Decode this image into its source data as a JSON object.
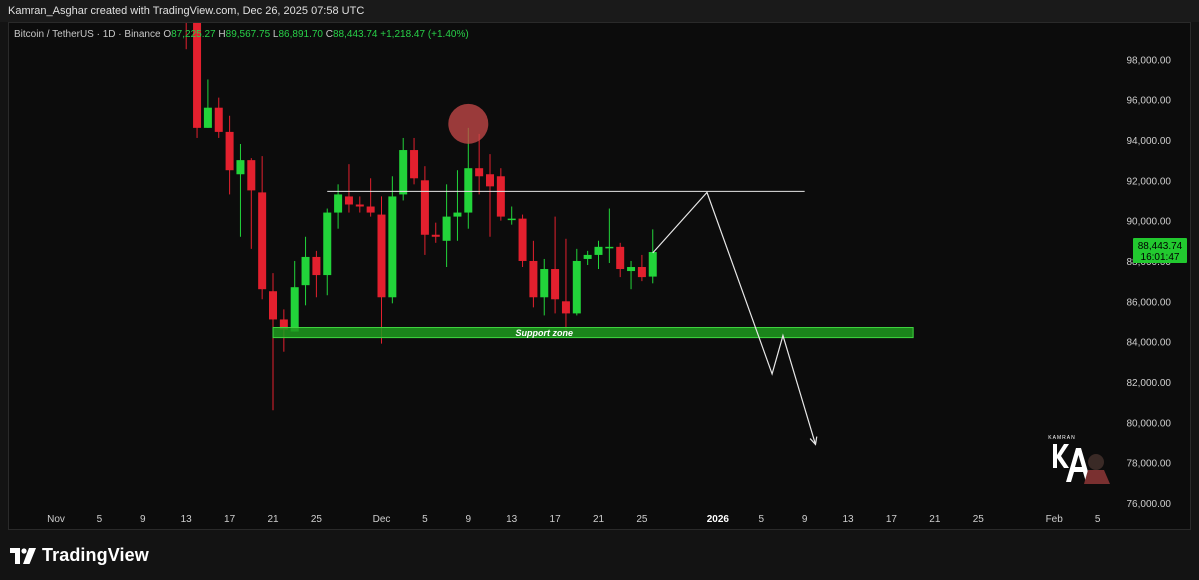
{
  "header": {
    "attribution": "Kamran_Asghar created with TradingView.com, Dec 26, 2025 07:58 UTC"
  },
  "legend": {
    "symbol": "Bitcoin / TetherUS · 1D · Binance",
    "open_label": "O",
    "open": "87,225.27",
    "high_label": "H",
    "high": "89,567.75",
    "low_label": "L",
    "low": "86,891.70",
    "close_label": "C",
    "close": "88,443.74",
    "change": "+1,218.47 (+1.40%)"
  },
  "price_badge": {
    "price": "88,443.74",
    "countdown": "16:01:47"
  },
  "annotations": {
    "support_label": "Support zone",
    "logo_text": "KAMRAN"
  },
  "footer": {
    "brand": "TradingView"
  },
  "colors": {
    "up": "#22d43a",
    "down": "#e3202e",
    "background": "#0c0c0c",
    "support_zone": "#1f9b1f",
    "badge": "#22c92f"
  },
  "chart_data": {
    "type": "candlestick",
    "y_ticks": [
      "98,000.00",
      "96,000.00",
      "94,000.00",
      "92,000.00",
      "90,000.00",
      "88,000.00",
      "86,000.00",
      "84,000.00",
      "82,000.00",
      "80,000.00",
      "78,000.00",
      "76,000.00"
    ],
    "ylim": [
      75800,
      99800
    ],
    "x_ticks": [
      {
        "label": "Nov",
        "date": "2025-11-01"
      },
      {
        "label": "5",
        "date": "2025-11-05"
      },
      {
        "label": "9",
        "date": "2025-11-09"
      },
      {
        "label": "13",
        "date": "2025-11-13"
      },
      {
        "label": "17",
        "date": "2025-11-17"
      },
      {
        "label": "21",
        "date": "2025-11-21"
      },
      {
        "label": "25",
        "date": "2025-11-25"
      },
      {
        "label": "Dec",
        "date": "2025-12-01"
      },
      {
        "label": "5",
        "date": "2025-12-05"
      },
      {
        "label": "9",
        "date": "2025-12-09"
      },
      {
        "label": "13",
        "date": "2025-12-13"
      },
      {
        "label": "17",
        "date": "2025-12-17"
      },
      {
        "label": "21",
        "date": "2025-12-21"
      },
      {
        "label": "25",
        "date": "2025-12-25"
      },
      {
        "label": "2026",
        "date": "2026-01-01",
        "bold": true
      },
      {
        "label": "5",
        "date": "2026-01-05"
      },
      {
        "label": "9",
        "date": "2026-01-09"
      },
      {
        "label": "13",
        "date": "2026-01-13"
      },
      {
        "label": "17",
        "date": "2026-01-17"
      },
      {
        "label": "21",
        "date": "2026-01-21"
      },
      {
        "label": "25",
        "date": "2026-01-25"
      },
      {
        "label": "Feb",
        "date": "2026-02-01"
      },
      {
        "label": "5",
        "date": "2026-02-05"
      }
    ],
    "candles": [
      {
        "date": "2025-11-13",
        "o": 101500,
        "h": 104000,
        "l": 98500,
        "c": 99800
      },
      {
        "date": "2025-11-14",
        "o": 99800,
        "h": 100000,
        "l": 94100,
        "c": 94600
      },
      {
        "date": "2025-11-15",
        "o": 94600,
        "h": 97000,
        "l": 94600,
        "c": 95600
      },
      {
        "date": "2025-11-16",
        "o": 95600,
        "h": 96100,
        "l": 94100,
        "c": 94400
      },
      {
        "date": "2025-11-17",
        "o": 94400,
        "h": 95200,
        "l": 91300,
        "c": 92500
      },
      {
        "date": "2025-11-18",
        "o": 92300,
        "h": 93800,
        "l": 89200,
        "c": 93000
      },
      {
        "date": "2025-11-19",
        "o": 93000,
        "h": 93100,
        "l": 88600,
        "c": 91500
      },
      {
        "date": "2025-11-20",
        "o": 91400,
        "h": 93200,
        "l": 86100,
        "c": 86600
      },
      {
        "date": "2025-11-21",
        "o": 86500,
        "h": 87400,
        "l": 80600,
        "c": 85100
      },
      {
        "date": "2025-11-22",
        "o": 85100,
        "h": 85600,
        "l": 83500,
        "c": 84600
      },
      {
        "date": "2025-11-23",
        "o": 84500,
        "h": 88000,
        "l": 84500,
        "c": 86700
      },
      {
        "date": "2025-11-24",
        "o": 86800,
        "h": 89200,
        "l": 85800,
        "c": 88200
      },
      {
        "date": "2025-11-25",
        "o": 88200,
        "h": 88500,
        "l": 86200,
        "c": 87300
      },
      {
        "date": "2025-11-26",
        "o": 87300,
        "h": 90600,
        "l": 86300,
        "c": 90400
      },
      {
        "date": "2025-11-27",
        "o": 90400,
        "h": 91800,
        "l": 89600,
        "c": 91300
      },
      {
        "date": "2025-11-28",
        "o": 91200,
        "h": 92800,
        "l": 90400,
        "c": 90800
      },
      {
        "date": "2025-11-29",
        "o": 90800,
        "h": 91200,
        "l": 90400,
        "c": 90700
      },
      {
        "date": "2025-11-30",
        "o": 90700,
        "h": 92100,
        "l": 90200,
        "c": 90400
      },
      {
        "date": "2025-12-01",
        "o": 90300,
        "h": 91200,
        "l": 83900,
        "c": 86200
      },
      {
        "date": "2025-12-02",
        "o": 86200,
        "h": 92200,
        "l": 85900,
        "c": 91200
      },
      {
        "date": "2025-12-03",
        "o": 91300,
        "h": 94100,
        "l": 91000,
        "c": 93500
      },
      {
        "date": "2025-12-04",
        "o": 93500,
        "h": 94100,
        "l": 91800,
        "c": 92100
      },
      {
        "date": "2025-12-05",
        "o": 92000,
        "h": 92700,
        "l": 88300,
        "c": 89300
      },
      {
        "date": "2025-12-06",
        "o": 89300,
        "h": 89900,
        "l": 88900,
        "c": 89200
      },
      {
        "date": "2025-12-07",
        "o": 89000,
        "h": 91800,
        "l": 87700,
        "c": 90200
      },
      {
        "date": "2025-12-08",
        "o": 90200,
        "h": 92500,
        "l": 89000,
        "c": 90400
      },
      {
        "date": "2025-12-09",
        "o": 90400,
        "h": 94600,
        "l": 89600,
        "c": 92600
      },
      {
        "date": "2025-12-10",
        "o": 92600,
        "h": 94300,
        "l": 91300,
        "c": 92200
      },
      {
        "date": "2025-12-11",
        "o": 92300,
        "h": 93300,
        "l": 89200,
        "c": 91700
      },
      {
        "date": "2025-12-12",
        "o": 92200,
        "h": 92600,
        "l": 90000,
        "c": 90200
      },
      {
        "date": "2025-12-13",
        "o": 90100,
        "h": 90700,
        "l": 89800,
        "c": 90100
      },
      {
        "date": "2025-12-14",
        "o": 90100,
        "h": 90300,
        "l": 87700,
        "c": 88000
      },
      {
        "date": "2025-12-15",
        "o": 88000,
        "h": 89000,
        "l": 85700,
        "c": 86200
      },
      {
        "date": "2025-12-16",
        "o": 86200,
        "h": 88100,
        "l": 85300,
        "c": 87600
      },
      {
        "date": "2025-12-17",
        "o": 87600,
        "h": 90200,
        "l": 85400,
        "c": 86100
      },
      {
        "date": "2025-12-18",
        "o": 86000,
        "h": 89100,
        "l": 84500,
        "c": 85400
      },
      {
        "date": "2025-12-19",
        "o": 85400,
        "h": 88600,
        "l": 85300,
        "c": 88000
      },
      {
        "date": "2025-12-20",
        "o": 88100,
        "h": 88500,
        "l": 87800,
        "c": 88300
      },
      {
        "date": "2025-12-21",
        "o": 88300,
        "h": 89000,
        "l": 87600,
        "c": 88700
      },
      {
        "date": "2025-12-22",
        "o": 88700,
        "h": 90600,
        "l": 87900,
        "c": 88700
      },
      {
        "date": "2025-12-23",
        "o": 88700,
        "h": 88900,
        "l": 87200,
        "c": 87600
      },
      {
        "date": "2025-12-24",
        "o": 87500,
        "h": 88000,
        "l": 86600,
        "c": 87700
      },
      {
        "date": "2025-12-25",
        "o": 87700,
        "h": 88300,
        "l": 87000,
        "c": 87200
      },
      {
        "date": "2025-12-26",
        "o": 87225.27,
        "h": 89567.75,
        "l": 86891.7,
        "c": 88443.74
      }
    ],
    "resistance_level": 91450,
    "support_zone": [
      84200,
      84700
    ],
    "projection_path": [
      {
        "date": "2025-12-26",
        "price": 88400
      },
      {
        "date": "2025-12-31",
        "price": 91400
      },
      {
        "date": "2026-01-06",
        "price": 82400
      },
      {
        "date": "2026-01-07",
        "price": 84300
      },
      {
        "date": "2026-01-10",
        "price": 78900
      }
    ],
    "highlight_marker": {
      "date": "2025-12-09",
      "price": 94800
    }
  }
}
